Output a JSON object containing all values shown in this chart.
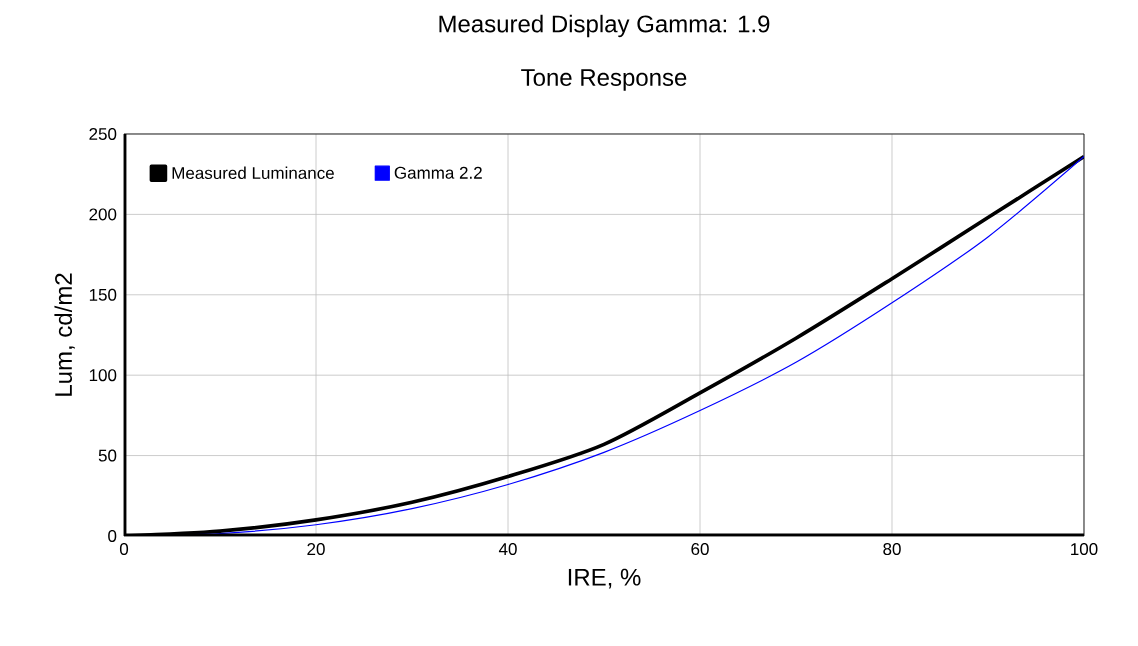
{
  "chart_data": {
    "type": "line",
    "title": "Measured Display Gamma: 1.9",
    "subtitle": "Tone Response",
    "xlabel": "IRE, %",
    "ylabel": "Lum, cd/m2",
    "x": [
      0,
      10,
      20,
      30,
      40,
      50,
      60,
      70,
      80,
      90,
      100
    ],
    "series": [
      {
        "name": "Measured Luminance",
        "color": "#000000",
        "values": [
          0,
          3,
          10,
          21,
          37,
          57,
          89,
          123,
          160,
          198,
          236
        ]
      },
      {
        "name": "Gamma 2.2",
        "color": "#0000ff",
        "values": [
          0,
          1.5,
          7,
          17,
          32,
          52,
          78,
          108,
          145,
          186,
          236
        ]
      }
    ],
    "xlim": [
      0,
      100
    ],
    "ylim": [
      0,
      250
    ],
    "xticks": [
      0,
      20,
      40,
      60,
      80,
      100
    ],
    "yticks": [
      0,
      50,
      100,
      150,
      200,
      250
    ],
    "grid": true,
    "legend": "top left",
    "marker": "none",
    "line_style": "solid"
  }
}
